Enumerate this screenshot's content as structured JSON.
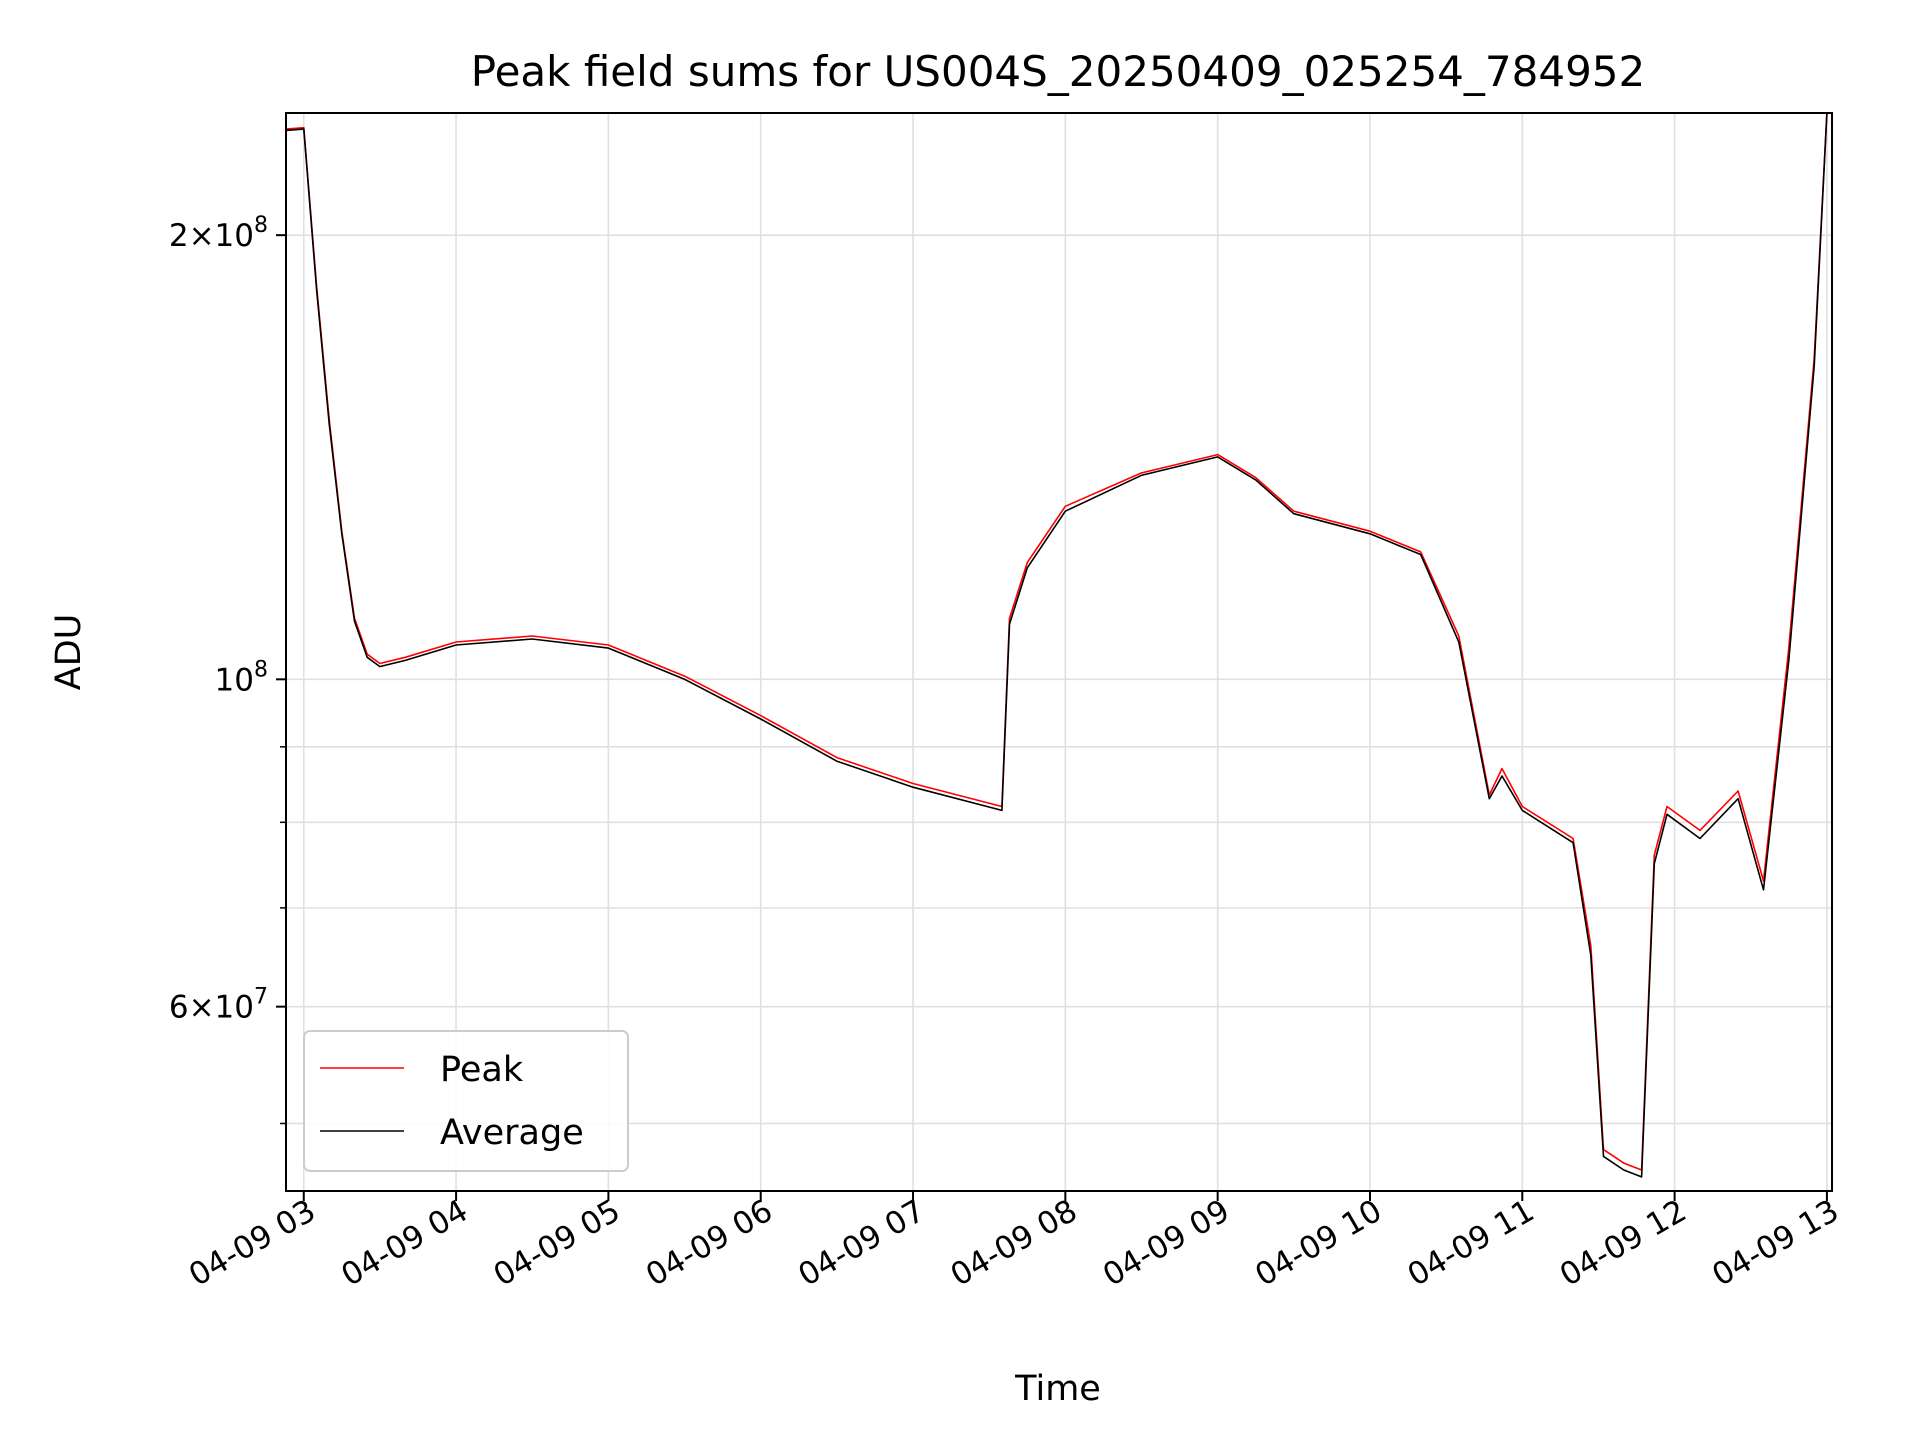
{
  "chart_data": {
    "type": "line",
    "title": "Peak field sums for US004S_20250409_025254_784952",
    "xlabel": "Time",
    "ylabel": "ADU",
    "y_scale": "log",
    "ylim": [
      45000000,
      242000000
    ],
    "xlim": [
      "04-09 02:53",
      "04-09 13:02"
    ],
    "grid": true,
    "legend_location": "lower-left",
    "x_ticks": [
      "04-09 03",
      "04-09 04",
      "04-09 05",
      "04-09 06",
      "04-09 07",
      "04-09 08",
      "04-09 09",
      "04-09 10",
      "04-09 11",
      "04-09 12",
      "04-09 13"
    ],
    "y_ticks": [
      {
        "value": 200000000,
        "mantissa": "2",
        "exponent": "8"
      },
      {
        "value": 100000000,
        "mantissa": "",
        "exponent": "8"
      },
      {
        "value": 60000000,
        "mantissa": "6",
        "exponent": "7"
      }
    ],
    "y_minor_ticks": [
      50000000,
      70000000,
      80000000,
      90000000
    ],
    "x": [
      "02:53",
      "03:00",
      "03:05",
      "03:10",
      "03:15",
      "03:20",
      "03:25",
      "03:30",
      "03:40",
      "04:00",
      "04:30",
      "05:00",
      "05:30",
      "06:00",
      "06:30",
      "07:00",
      "07:35",
      "07:38",
      "07:45",
      "08:00",
      "08:30",
      "09:00",
      "09:15",
      "09:30",
      "10:00",
      "10:20",
      "10:35",
      "10:47",
      "10:52",
      "11:00",
      "11:20",
      "11:27",
      "11:32",
      "11:40",
      "11:47",
      "11:52",
      "11:57",
      "12:10",
      "12:25",
      "12:35",
      "12:45",
      "12:55",
      "13:00"
    ],
    "series": [
      {
        "name": "Peak",
        "color": "#ff0000",
        "values": [
          236000000,
          236500000,
          185000000,
          150000000,
          126000000,
          110000000,
          104000000,
          102500000,
          103500000,
          106000000,
          107000000,
          105500000,
          100500000,
          94500000,
          88500000,
          85000000,
          82000000,
          110000000,
          120000000,
          131000000,
          138000000,
          142000000,
          137000000,
          130000000,
          126000000,
          122000000,
          107000000,
          83500000,
          87000000,
          82000000,
          78000000,
          66000000,
          48000000,
          47000000,
          46500000,
          76000000,
          82000000,
          79000000,
          84000000,
          73000000,
          105000000,
          165000000,
          242000000
        ]
      },
      {
        "name": "Average",
        "color": "#000000",
        "values": [
          235500000,
          236000000,
          184000000,
          149000000,
          125500000,
          109500000,
          103500000,
          102000000,
          103000000,
          105500000,
          106500000,
          105000000,
          100000000,
          94000000,
          88000000,
          84500000,
          81500000,
          109000000,
          119000000,
          130000000,
          137500000,
          141500000,
          136500000,
          129500000,
          125500000,
          121500000,
          106000000,
          83000000,
          86000000,
          81500000,
          77500000,
          65000000,
          47500000,
          46500000,
          46000000,
          75000000,
          81000000,
          78000000,
          83000000,
          72000000,
          103000000,
          163000000,
          242000000
        ]
      }
    ]
  }
}
